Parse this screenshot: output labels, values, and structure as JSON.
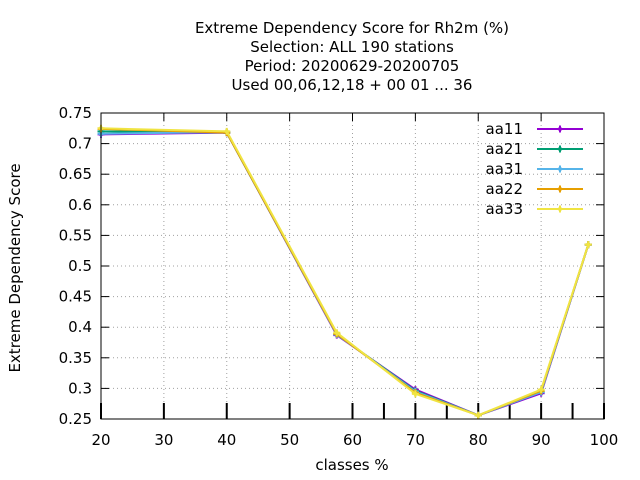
{
  "chart_data": {
    "type": "line",
    "title_lines": [
      "Extreme Dependency Score  for Rh2m (%)",
      "Selection: ALL    190 stations",
      "Period: 20200629-20200705",
      "Used  00,06,12,18 + 00 01 ... 36"
    ],
    "xlabel": "classes %",
    "ylabel": "Extreme Dependency Score",
    "xlim": [
      20,
      100
    ],
    "ylim": [
      0.25,
      0.75
    ],
    "x_ticks": [
      20,
      30,
      40,
      50,
      60,
      70,
      80,
      90,
      100
    ],
    "y_ticks": [
      0.25,
      0.3,
      0.35,
      0.4,
      0.45,
      0.5,
      0.55,
      0.6,
      0.65,
      0.7,
      0.75
    ],
    "grid": true,
    "legend_position": "top-right",
    "x": [
      20,
      40,
      57.5,
      70,
      80,
      90,
      97.5
    ],
    "series": [
      {
        "name": "aa11",
        "color": "#9400d3",
        "values": [
          0.715,
          0.718,
          0.387,
          0.298,
          0.256,
          0.292,
          0.535
        ]
      },
      {
        "name": "aa21",
        "color": "#009e73",
        "values": [
          0.72,
          0.718,
          0.388,
          0.296,
          0.256,
          0.294,
          0.535
        ]
      },
      {
        "name": "aa31",
        "color": "#56b4e9",
        "values": [
          0.716,
          0.719,
          0.388,
          0.295,
          0.256,
          0.294,
          0.535
        ]
      },
      {
        "name": "aa22",
        "color": "#e69f00",
        "values": [
          0.724,
          0.718,
          0.389,
          0.293,
          0.256,
          0.296,
          0.535
        ]
      },
      {
        "name": "aa33",
        "color": "#f0e442",
        "values": [
          0.725,
          0.72,
          0.391,
          0.291,
          0.256,
          0.298,
          0.535
        ]
      }
    ],
    "extra_x_ticks": [
      65,
      75,
      85,
      95
    ]
  }
}
